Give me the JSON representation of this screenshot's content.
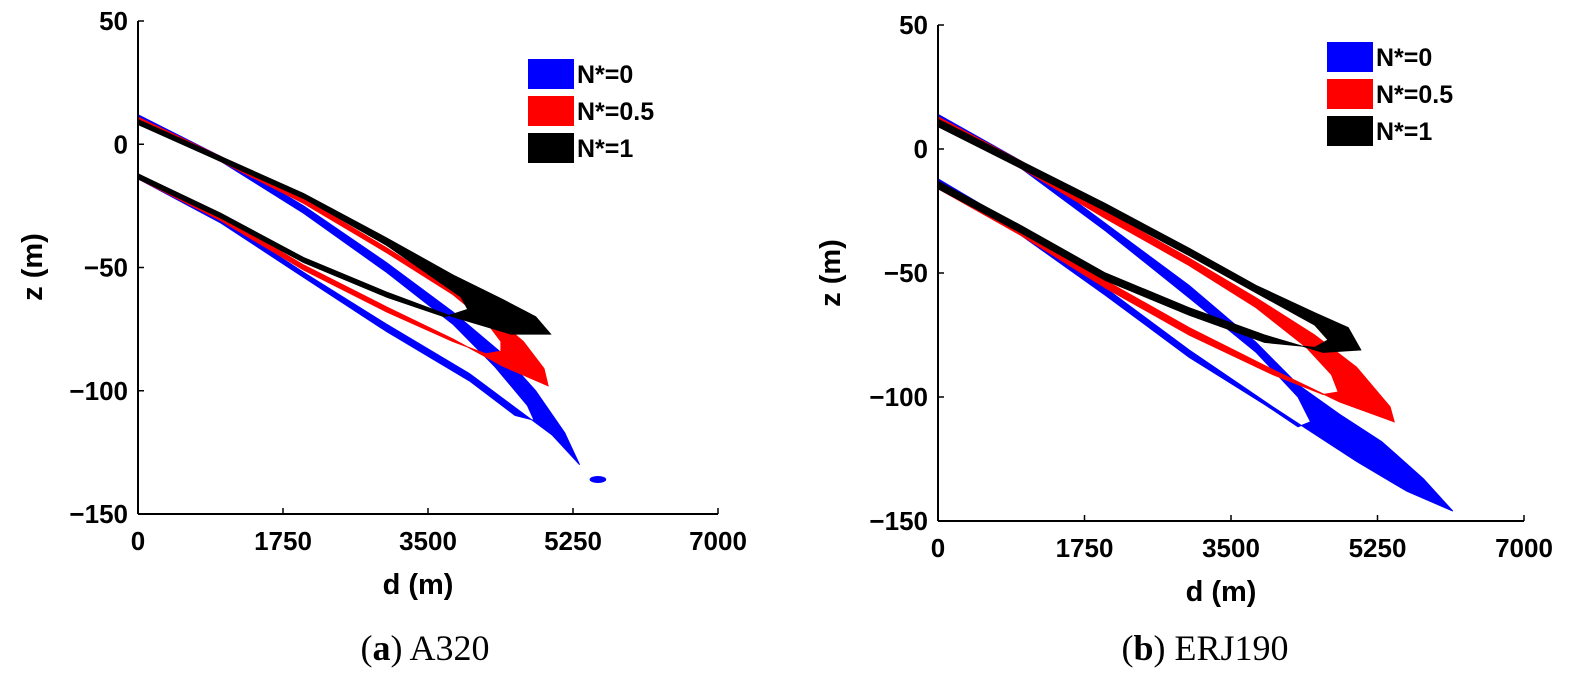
{
  "colors": {
    "blue": "#0000ff",
    "red": "#ff0000",
    "black": "#000000"
  },
  "chart_data": [
    {
      "type": "area",
      "caption_letter": "a",
      "caption_text": "A320",
      "xlabel": "d (m)",
      "ylabel": "z (m)",
      "xlim": [
        0,
        7000
      ],
      "ylim": [
        -150,
        50
      ],
      "xticks": [
        0,
        1750,
        3500,
        5250,
        7000
      ],
      "yticks": [
        50,
        0,
        -50,
        -100,
        -150
      ],
      "xtick_labels": [
        "0",
        "1750",
        "3500",
        "5250",
        "7000"
      ],
      "ytick_labels": [
        "50",
        "0",
        "−50",
        "−100",
        "−150"
      ],
      "legend_position": "top-right",
      "series": [
        {
          "name": "N*=0",
          "color": "blue",
          "outer_upper": [
            [
              0,
              12
            ],
            [
              1000,
              -5
            ],
            [
              2000,
              -25
            ],
            [
              3000,
              -48
            ],
            [
              3800,
              -68
            ],
            [
              4400,
              -85
            ],
            [
              4800,
              -100
            ],
            [
              5150,
              -117
            ],
            [
              5330,
              -130
            ]
          ],
          "outer_lower": [
            [
              0,
              -12
            ],
            [
              1000,
              -30
            ],
            [
              2000,
              -52
            ],
            [
              3000,
              -73
            ],
            [
              4000,
              -93
            ],
            [
              4600,
              -108
            ],
            [
              5000,
              -118
            ],
            [
              5330,
              -130
            ]
          ],
          "inner_upper": [
            [
              0,
              10
            ],
            [
              1000,
              -7
            ],
            [
              2000,
              -28
            ],
            [
              3000,
              -52
            ],
            [
              3800,
              -73
            ],
            [
              4300,
              -90
            ],
            [
              4700,
              -106
            ],
            [
              4780,
              -112
            ]
          ],
          "inner_lower": [
            [
              0,
              -14
            ],
            [
              1000,
              -32
            ],
            [
              2000,
              -54
            ],
            [
              3000,
              -76
            ],
            [
              4000,
              -96
            ],
            [
              4550,
              -110
            ],
            [
              4780,
              -112
            ]
          ],
          "satellite": [
            [
              5450,
              -135
            ],
            [
              5650,
              -137
            ]
          ]
        },
        {
          "name": "N*=0.5",
          "color": "red",
          "outer_upper": [
            [
              0,
              11
            ],
            [
              1000,
              -5
            ],
            [
              2000,
              -22
            ],
            [
              3000,
              -42
            ],
            [
              3800,
              -59
            ],
            [
              4300,
              -70
            ],
            [
              4650,
              -80
            ],
            [
              4900,
              -91
            ],
            [
              4950,
              -98
            ]
          ],
          "outer_lower": [
            [
              0,
              -12
            ],
            [
              1000,
              -29
            ],
            [
              2000,
              -49
            ],
            [
              3000,
              -66
            ],
            [
              3800,
              -79
            ],
            [
              4400,
              -90
            ],
            [
              4950,
              -98
            ]
          ],
          "inner_upper": [
            [
              0,
              9
            ],
            [
              1000,
              -7
            ],
            [
              2000,
              -24
            ],
            [
              3000,
              -44
            ],
            [
              3800,
              -61
            ],
            [
              4200,
              -72
            ],
            [
              4380,
              -80
            ],
            [
              4380,
              -84
            ]
          ],
          "inner_lower": [
            [
              0,
              -14
            ],
            [
              1000,
              -31
            ],
            [
              2000,
              -51
            ],
            [
              3000,
              -68
            ],
            [
              3800,
              -80
            ],
            [
              4200,
              -85
            ],
            [
              4380,
              -84
            ]
          ]
        },
        {
          "name": "N*=1",
          "color": "black",
          "outer_upper": [
            [
              0,
              10
            ],
            [
              1000,
              -5
            ],
            [
              2000,
              -20
            ],
            [
              3000,
              -38
            ],
            [
              3800,
              -53
            ],
            [
              4400,
              -63
            ],
            [
              4800,
              -70
            ],
            [
              4980,
              -77
            ]
          ],
          "outer_lower": [
            [
              0,
              -12
            ],
            [
              1000,
              -28
            ],
            [
              2000,
              -46
            ],
            [
              3000,
              -60
            ],
            [
              3800,
              -70
            ],
            [
              4500,
              -77
            ],
            [
              4980,
              -77
            ]
          ],
          "inner_upper": [
            [
              0,
              8
            ],
            [
              1000,
              -7
            ],
            [
              2000,
              -22
            ],
            [
              3000,
              -41
            ],
            [
              3600,
              -55
            ],
            [
              3900,
              -62
            ],
            [
              3980,
              -67
            ]
          ],
          "inner_lower": [
            [
              0,
              -14
            ],
            [
              1000,
              -30
            ],
            [
              2000,
              -48
            ],
            [
              3000,
              -62
            ],
            [
              3700,
              -70
            ],
            [
              3980,
              -67
            ]
          ]
        }
      ]
    },
    {
      "type": "area",
      "caption_letter": "b",
      "caption_text": "ERJ190",
      "xlabel": "d (m)",
      "ylabel": "z (m)",
      "xlim": [
        0,
        7000
      ],
      "ylim": [
        -150,
        50
      ],
      "xticks": [
        0,
        1750,
        3500,
        5250,
        7000
      ],
      "yticks": [
        50,
        0,
        -50,
        -100,
        -150
      ],
      "xtick_labels": [
        "0",
        "1750",
        "3500",
        "5250",
        "7000"
      ],
      "ytick_labels": [
        "50",
        "0",
        "−50",
        "−100",
        "−150"
      ],
      "legend_position": "top-right",
      "series": [
        {
          "name": "N*=0",
          "color": "blue",
          "outer_upper": [
            [
              0,
              14
            ],
            [
              1000,
              -5
            ],
            [
              2000,
              -30
            ],
            [
              3000,
              -55
            ],
            [
              3800,
              -78
            ],
            [
              4300,
              -95
            ],
            [
              4800,
              -107
            ],
            [
              5300,
              -118
            ],
            [
              5800,
              -133
            ],
            [
              6150,
              -146
            ]
          ],
          "outer_lower": [
            [
              0,
              -12
            ],
            [
              1000,
              -32
            ],
            [
              2000,
              -56
            ],
            [
              3000,
              -81
            ],
            [
              4000,
              -104
            ],
            [
              5000,
              -126
            ],
            [
              5600,
              -138
            ],
            [
              6150,
              -146
            ]
          ],
          "inner_upper": [
            [
              0,
              11
            ],
            [
              1000,
              -8
            ],
            [
              2000,
              -33
            ],
            [
              3000,
              -60
            ],
            [
              3800,
              -82
            ],
            [
              4300,
              -100
            ],
            [
              4450,
              -110
            ]
          ],
          "inner_lower": [
            [
              0,
              -15
            ],
            [
              1000,
              -35
            ],
            [
              2000,
              -59
            ],
            [
              3000,
              -84
            ],
            [
              3900,
              -103
            ],
            [
              4300,
              -112
            ],
            [
              4450,
              -110
            ]
          ]
        },
        {
          "name": "N*=0.5",
          "color": "red",
          "outer_upper": [
            [
              0,
              13
            ],
            [
              1000,
              -5
            ],
            [
              2000,
              -25
            ],
            [
              3000,
              -44
            ],
            [
              3800,
              -60
            ],
            [
              4500,
              -75
            ],
            [
              5000,
              -88
            ],
            [
              5400,
              -104
            ],
            [
              5450,
              -110
            ]
          ],
          "outer_lower": [
            [
              0,
              -13
            ],
            [
              1000,
              -32
            ],
            [
              2000,
              -53
            ],
            [
              3000,
              -72
            ],
            [
              4000,
              -89
            ],
            [
              4800,
              -102
            ],
            [
              5450,
              -110
            ]
          ],
          "inner_upper": [
            [
              0,
              10
            ],
            [
              1000,
              -8
            ],
            [
              2000,
              -28
            ],
            [
              3000,
              -47
            ],
            [
              3800,
              -64
            ],
            [
              4400,
              -80
            ],
            [
              4700,
              -91
            ],
            [
              4780,
              -98
            ]
          ],
          "inner_lower": [
            [
              0,
              -16
            ],
            [
              1000,
              -35
            ],
            [
              2000,
              -56
            ],
            [
              3000,
              -75
            ],
            [
              4000,
              -91
            ],
            [
              4600,
              -99
            ],
            [
              4780,
              -98
            ]
          ]
        },
        {
          "name": "N*=1",
          "color": "black",
          "outer_upper": [
            [
              0,
              12
            ],
            [
              1000,
              -5
            ],
            [
              2000,
              -22
            ],
            [
              3000,
              -40
            ],
            [
              3800,
              -55
            ],
            [
              4500,
              -66
            ],
            [
              4900,
              -72
            ],
            [
              5050,
              -81
            ]
          ],
          "outer_lower": [
            [
              0,
              -13
            ],
            [
              1000,
              -31
            ],
            [
              2000,
              -50
            ],
            [
              3000,
              -64
            ],
            [
              3900,
              -75
            ],
            [
              4600,
              -82
            ],
            [
              5050,
              -81
            ]
          ],
          "inner_upper": [
            [
              0,
              9
            ],
            [
              1000,
              -8
            ],
            [
              2000,
              -25
            ],
            [
              3000,
              -43
            ],
            [
              3800,
              -58
            ],
            [
              4500,
              -71
            ],
            [
              4660,
              -77
            ]
          ],
          "inner_lower": [
            [
              0,
              -16
            ],
            [
              1000,
              -34
            ],
            [
              2000,
              -53
            ],
            [
              3000,
              -67
            ],
            [
              3900,
              -78
            ],
            [
              4500,
              -80
            ],
            [
              4660,
              -77
            ]
          ]
        }
      ]
    }
  ]
}
